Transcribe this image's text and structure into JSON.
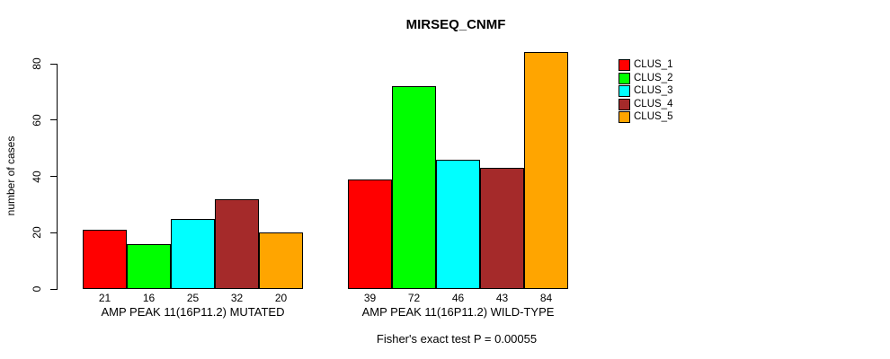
{
  "chart_data": {
    "type": "bar",
    "title": "MIRSEQ_CNMF",
    "xlabel": "",
    "ylabel": "number of cases",
    "annotation": "Fisher's exact test P = 0.00055",
    "ylim": [
      0,
      80
    ],
    "yticks": [
      0,
      20,
      40,
      60,
      80
    ],
    "grid": false,
    "legend_position": "right",
    "bar_borders": "#000000",
    "categories": [
      "AMP PEAK 11(16P11.2) MUTATED",
      "AMP PEAK 11(16P11.2) WILD-TYPE"
    ],
    "series": [
      {
        "name": "CLUS_1",
        "color": "#FF0000",
        "values": [
          21,
          39
        ]
      },
      {
        "name": "CLUS_2",
        "color": "#00FF00",
        "values": [
          16,
          72
        ]
      },
      {
        "name": "CLUS_3",
        "color": "#00FFFF",
        "values": [
          25,
          46
        ]
      },
      {
        "name": "CLUS_4",
        "color": "#A52A2A",
        "values": [
          32,
          43
        ]
      },
      {
        "name": "CLUS_5",
        "color": "#FFA500",
        "values": [
          20,
          84
        ]
      }
    ],
    "bar_value_labels": [
      [
        "21",
        "16",
        "25",
        "32",
        "20"
      ],
      [
        "39",
        "72",
        "46",
        "43",
        "84"
      ]
    ]
  }
}
